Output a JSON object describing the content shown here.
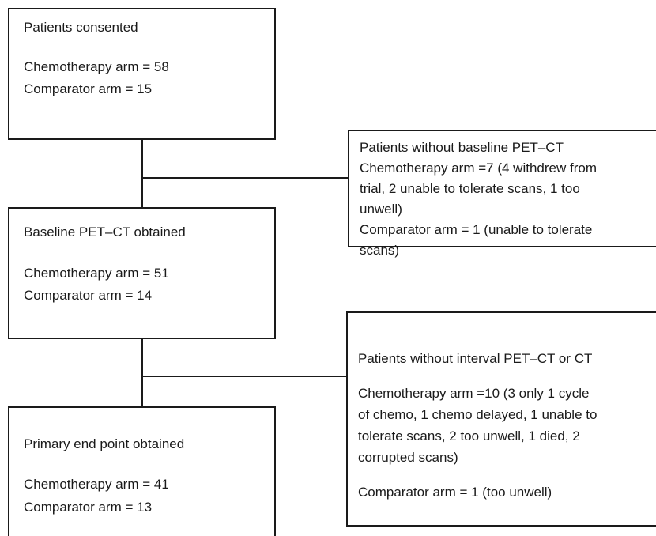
{
  "flow_boxes": [
    {
      "title": "Patients consented",
      "lines": [
        "Chemotherapy arm = 58",
        "Comparator arm = 15"
      ]
    },
    {
      "title": "Baseline PET–CT obtained",
      "lines": [
        "Chemotherapy arm = 51",
        "Comparator arm = 14"
      ]
    },
    {
      "title": "Primary end point obtained",
      "lines": [
        "Chemotherapy arm = 41",
        "Comparator arm = 13"
      ]
    }
  ],
  "exclusion_boxes": [
    {
      "title": "Patients without baseline PET–CT",
      "lines": [
        "Chemotherapy arm =7 (4 withdrew from",
        "trial, 2 unable to tolerate scans, 1 too",
        "unwell)",
        "Comparator arm = 1  (unable to tolerate",
        "scans)"
      ]
    },
    {
      "title": "Patients without interval PET–CT or CT",
      "lines": [
        "Chemotherapy arm =10  (3 only 1 cycle",
        "of chemo, 1 chemo delayed, 1 unable to",
        "tolerate scans, 2 too unwell, 1 died, 2",
        "corrupted scans)",
        "Comparator arm = 1  (too unwell)"
      ]
    }
  ]
}
